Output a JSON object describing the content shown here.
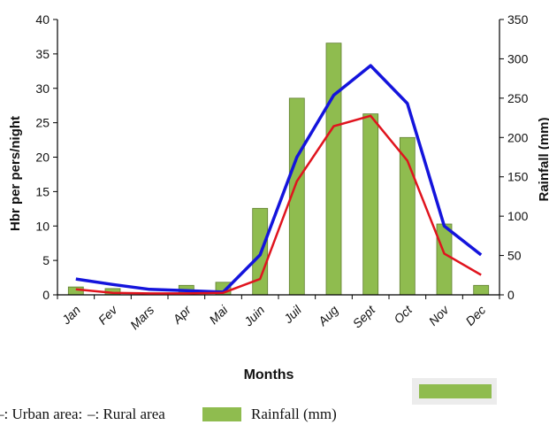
{
  "chart_data": {
    "type": "bar",
    "categories": [
      "Jan",
      "Fev",
      "Mars",
      "Apr",
      "Mai",
      "Juin",
      "Juil",
      "Aug",
      "Sept",
      "Oct",
      "Nov",
      "Dec"
    ],
    "xlabel": "Months",
    "ylabel": "Hbr per pers/night",
    "y2label": "Rainfall (mm)",
    "ylim": [
      0,
      40
    ],
    "y2lim": [
      0,
      350
    ],
    "yticks": [
      0,
      5,
      10,
      15,
      20,
      25,
      30,
      35,
      40
    ],
    "y2ticks": [
      0,
      50,
      100,
      150,
      200,
      250,
      300,
      350
    ],
    "series": [
      {
        "name": "Rainfall (mm)",
        "type": "bar",
        "axis": "right",
        "color": "#8fbc4f",
        "values": [
          10,
          8,
          2,
          12,
          16,
          110,
          250,
          320,
          230,
          200,
          90,
          12
        ]
      },
      {
        "name": "Urban area",
        "type": "line",
        "axis": "left",
        "color": "#1414dc",
        "values": [
          2.3,
          1.5,
          0.8,
          0.6,
          0.4,
          5.8,
          20.0,
          29.0,
          33.3,
          27.8,
          10.0,
          5.8
        ]
      },
      {
        "name": "Rural area",
        "type": "line",
        "axis": "left",
        "color": "#e0141e",
        "values": [
          0.8,
          0.3,
          0.2,
          0.2,
          0.3,
          2.3,
          16.5,
          24.5,
          26.0,
          19.5,
          6.0,
          2.9
        ]
      }
    ],
    "legend": {
      "position": "bottom",
      "urban_label": "–: Urban area:",
      "rural_label": "–: Rural area",
      "rainfall_label": "Rainfall (mm)"
    }
  }
}
